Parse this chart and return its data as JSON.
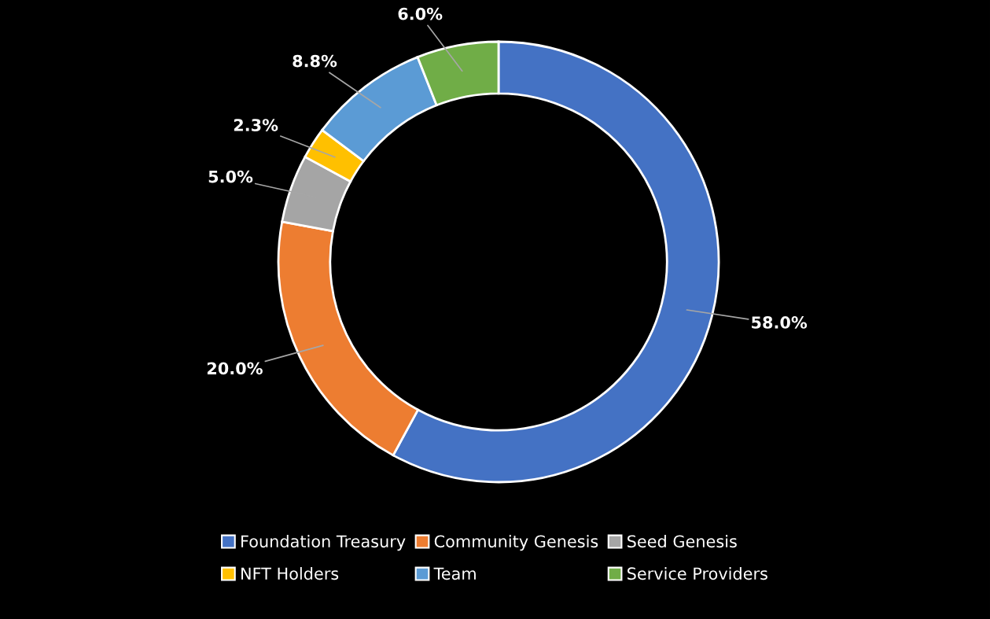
{
  "chart_data": {
    "type": "donut",
    "categories": [
      "Foundation Treasury",
      "Community Genesis",
      "Seed Genesis",
      "NFT Holders",
      "Team",
      "Service Providers"
    ],
    "values": [
      58.0,
      20.0,
      5.0,
      2.3,
      8.8,
      6.0
    ],
    "colors": [
      "#4472c4",
      "#ed7d31",
      "#a5a5a5",
      "#ffc000",
      "#5b9bd5",
      "#70ad47"
    ],
    "value_labels": [
      "58.0%",
      "20.0%",
      "5.0%",
      "2.3%",
      "8.8%",
      "6.0%"
    ],
    "legend": "bottom"
  }
}
